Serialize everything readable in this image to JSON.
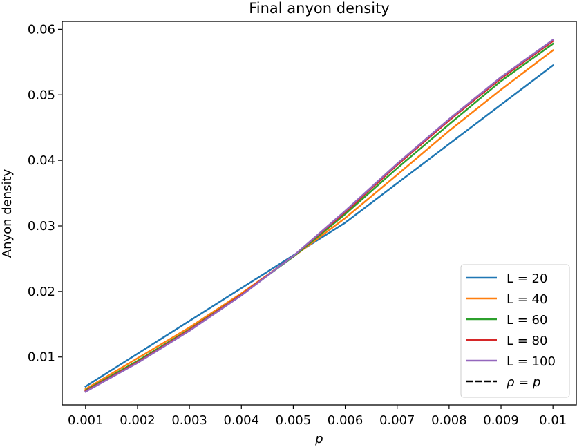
{
  "chart_data": {
    "type": "line",
    "title": "Final anyon density",
    "xlabel": "p",
    "ylabel": "Anyon density",
    "x": [
      0.001,
      0.002,
      0.003,
      0.004,
      0.005,
      0.006,
      0.007,
      0.008,
      0.009,
      0.01
    ],
    "x_tick_labels": [
      "0.001",
      "0.002",
      "0.003",
      "0.004",
      "0.005",
      "0.006",
      "0.007",
      "0.008",
      "0.009",
      "0.01"
    ],
    "y_tick_values": [
      0.01,
      0.02,
      0.03,
      0.04,
      0.05,
      0.06
    ],
    "y_tick_labels": [
      "0.01",
      "0.02",
      "0.03",
      "0.04",
      "0.05",
      "0.06"
    ],
    "xlim": [
      0.00055,
      0.01045
    ],
    "ylim": [
      0.0027,
      0.0612
    ],
    "grid": false,
    "legend_position": "bottom-right",
    "series": [
      {
        "name": "L = 20",
        "color": "#1f77b4",
        "values": [
          0.0055,
          0.0105,
          0.0155,
          0.0205,
          0.0255,
          0.0305,
          0.0365,
          0.0425,
          0.0485,
          0.0545
        ]
      },
      {
        "name": "L = 40",
        "color": "#ff7f0e",
        "values": [
          0.0051,
          0.0098,
          0.0145,
          0.0197,
          0.0253,
          0.0312,
          0.0378,
          0.0445,
          0.0508,
          0.0568
        ]
      },
      {
        "name": "L = 60",
        "color": "#2ca02c",
        "values": [
          0.0049,
          0.0094,
          0.0142,
          0.0195,
          0.0253,
          0.0318,
          0.0388,
          0.0455,
          0.0521,
          0.0578
        ]
      },
      {
        "name": "L = 80",
        "color": "#d62728",
        "values": [
          0.0048,
          0.0092,
          0.0141,
          0.0195,
          0.0254,
          0.0321,
          0.0393,
          0.0461,
          0.0525,
          0.0582
        ]
      },
      {
        "name": "L = 100",
        "color": "#9467bd",
        "values": [
          0.0047,
          0.0091,
          0.014,
          0.0194,
          0.0254,
          0.0323,
          0.0395,
          0.0463,
          0.0527,
          0.0584
        ]
      }
    ],
    "reference_line": {
      "name_prefix": "ρ",
      "name_operator": " = ",
      "name_suffix": "p",
      "style": "dashed",
      "color": "#000000"
    }
  }
}
